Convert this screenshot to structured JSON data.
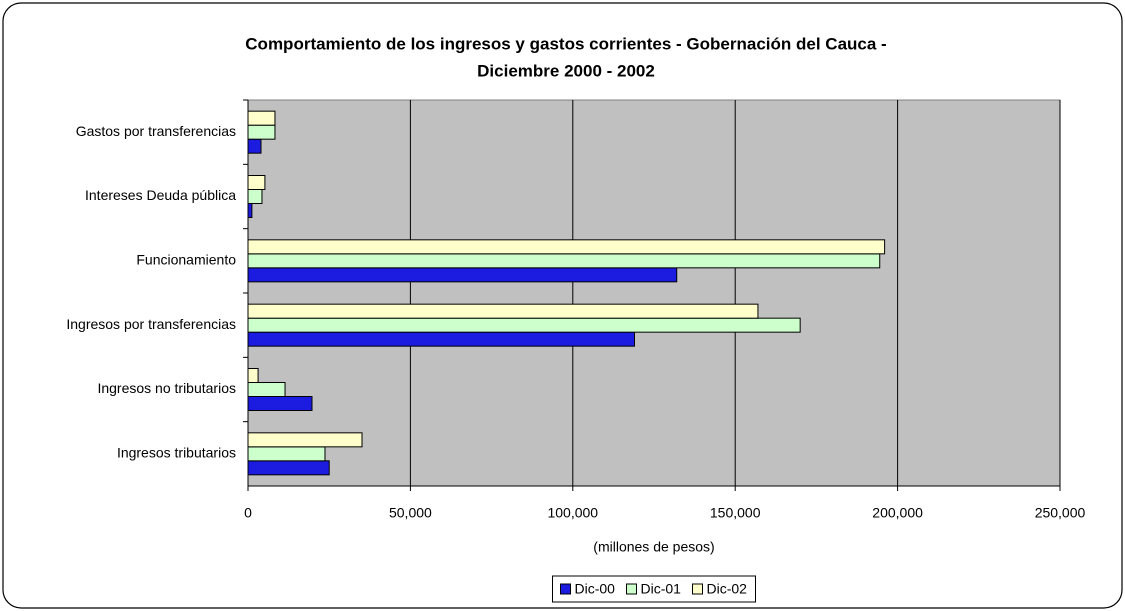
{
  "chart_data": {
    "type": "barh",
    "title": [
      "Comportamiento de los ingresos y gastos corrientes  - Gobernación del Cauca -",
      "Diciembre 2000 - 2002"
    ],
    "x_label": "(millones de pesos)",
    "categories": [
      "Ingresos tributarios",
      "Ingresos no tributarios",
      "Ingresos por transferencias",
      "Funcionamiento",
      "Intereses Deuda pública",
      "Gastos por transferencias"
    ],
    "series": [
      {
        "name": "Dic-00",
        "color": "#1c1ce0",
        "values": [
          25000,
          19700,
          119000,
          132000,
          1200,
          4000
        ]
      },
      {
        "name": "Dic-01",
        "color": "#ccffcc",
        "values": [
          23700,
          11400,
          170000,
          194500,
          4300,
          8300
        ]
      },
      {
        "name": "Dic-02",
        "color": "#ffffcc",
        "values": [
          35100,
          3100,
          157000,
          196000,
          5200,
          8300
        ]
      }
    ],
    "xlim": [
      0,
      250000
    ],
    "xticks": [
      0,
      {
        "value": 50000,
        "label": "50,000"
      },
      {
        "value": 100000,
        "label": "100,000"
      },
      {
        "value": 150000,
        "label": "150,000"
      },
      {
        "value": 200000,
        "label": "200,000"
      },
      {
        "value": 250000,
        "label": "250,000"
      }
    ],
    "grid": true,
    "legend": "bottom"
  }
}
